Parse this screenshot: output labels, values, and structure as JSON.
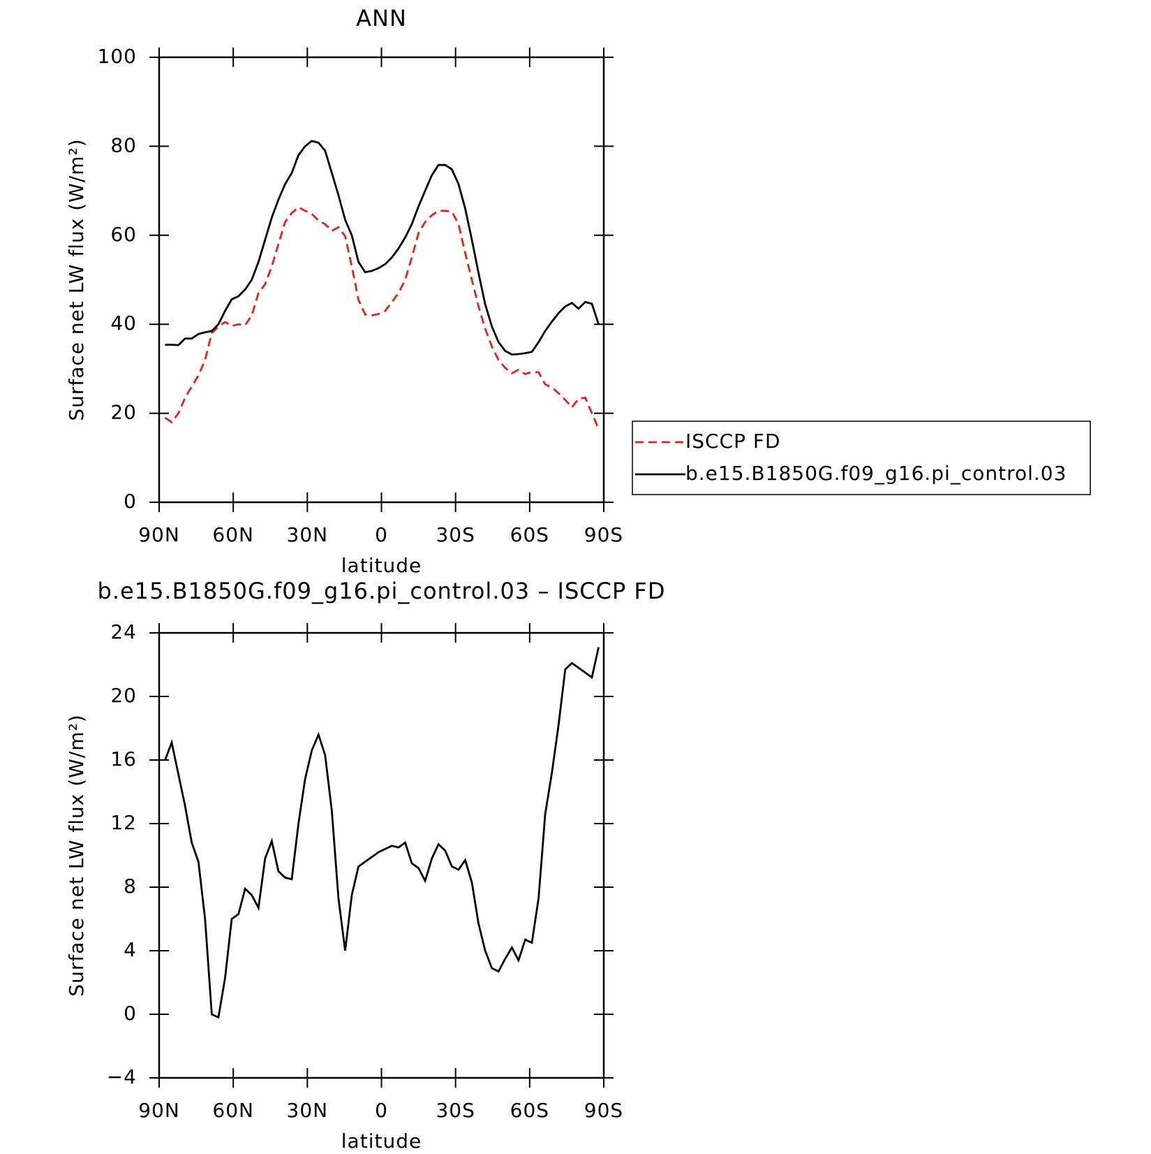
{
  "chart_data": [
    {
      "type": "line",
      "title": "ANN",
      "xlabel": "latitude",
      "ylabel": "Surface net LW flux (W/m²)",
      "x": [
        87.6,
        84.9,
        82.2,
        79.5,
        76.8,
        74.1,
        71.4,
        68.7,
        66,
        63.3,
        60.6,
        57.9,
        55.2,
        52.5,
        49.8,
        47.1,
        44.4,
        41.7,
        39,
        36.3,
        33.6,
        30.9,
        28.2,
        25.5,
        22.8,
        20.1,
        17.4,
        14.7,
        12,
        9.3,
        6.6,
        3.9,
        1.2,
        -1.5,
        -4.2,
        -6.9,
        -9.6,
        -12.3,
        -15,
        -17.7,
        -20.4,
        -23.1,
        -25.8,
        -28.5,
        -31.2,
        -33.9,
        -36.6,
        -39.3,
        -42,
        -44.7,
        -47.4,
        -50.1,
        -52.8,
        -55.5,
        -58.2,
        -60.9,
        -63.6,
        -66.3,
        -69,
        -71.7,
        -74.4,
        -77.1,
        -79.8,
        -82.5,
        -85.2,
        -87.9
      ],
      "series": [
        {
          "name": "ISCCP FD",
          "color": "#e8201f",
          "dash": true,
          "values": [
            19,
            18,
            20,
            23.5,
            26,
            28.5,
            32,
            38,
            39.5,
            40.5,
            39.6,
            40,
            39.8,
            42,
            47,
            49,
            53,
            58,
            63,
            65,
            66.3,
            65.5,
            64.8,
            63.3,
            62.5,
            61,
            61.8,
            59.8,
            53,
            45.5,
            42.2,
            42,
            42.3,
            43,
            45,
            47,
            50,
            55,
            60.5,
            63,
            64.5,
            65.5,
            65.5,
            65.3,
            62.5,
            56,
            50,
            44,
            39,
            35,
            32,
            30.2,
            29,
            29.8,
            28.8,
            29.3,
            29.2,
            26.5,
            25.8,
            24.5,
            23,
            21.3,
            23.3,
            23.5,
            20,
            16.5
          ]
        },
        {
          "name": "b.e15.B1850G.f09_g16.pi_control.03",
          "color": "#000000",
          "dash": false,
          "values": [
            35.4,
            35.4,
            35.3,
            36.8,
            36.8,
            37.8,
            38.2,
            38.5,
            40,
            43,
            45.6,
            46.3,
            47.8,
            50,
            54,
            59,
            64,
            68,
            71.5,
            74,
            78,
            80,
            81.2,
            80.8,
            79,
            74,
            69,
            63.5,
            60,
            54,
            51.7,
            52,
            52.6,
            53.5,
            55,
            57,
            59.5,
            62.5,
            66.5,
            70,
            73.5,
            75.8,
            75.8,
            74.8,
            71.5,
            66,
            59,
            51.5,
            44.5,
            39.5,
            36,
            34,
            33.2,
            33.3,
            33.5,
            33.8,
            36,
            38.5,
            40.6,
            42.5,
            44,
            44.8,
            43.5,
            45,
            44.6,
            40
          ]
        }
      ],
      "xlim": [
        90,
        -90
      ],
      "xticks": [
        {
          "value": 90,
          "label": "90N"
        },
        {
          "value": 60,
          "label": "60N"
        },
        {
          "value": 30,
          "label": "30N"
        },
        0,
        {
          "value": -30,
          "label": "30S"
        },
        {
          "value": -60,
          "label": "60S"
        },
        {
          "value": -90,
          "label": "90S"
        }
      ],
      "ylim": [
        0,
        100
      ],
      "yticks": [
        0,
        20,
        40,
        60,
        80,
        100
      ],
      "legend": "outside-right"
    },
    {
      "type": "line",
      "title": "b.e15.B1850G.f09_g16.pi_control.03 – ISCCP FD",
      "xlabel": "latitude",
      "ylabel": "Surface net LW flux (W/m²)",
      "x": [
        87.6,
        84.9,
        82.2,
        79.5,
        76.8,
        74.1,
        71.4,
        68.7,
        66,
        63.3,
        60.6,
        57.9,
        55.2,
        52.5,
        49.8,
        47.1,
        44.4,
        41.7,
        39,
        36.3,
        33.6,
        30.9,
        28.2,
        25.5,
        22.8,
        20.1,
        17.4,
        14.7,
        12,
        9.3,
        6.6,
        3.9,
        1.2,
        -1.5,
        -4.2,
        -6.9,
        -9.6,
        -12.3,
        -15,
        -17.7,
        -20.4,
        -23.1,
        -25.8,
        -28.5,
        -31.2,
        -33.9,
        -36.6,
        -39.3,
        -42,
        -44.7,
        -47.4,
        -50.1,
        -52.8,
        -55.5,
        -58.2,
        -60.9,
        -63.6,
        -66.3,
        -69,
        -71.7,
        -74.4,
        -77.1,
        -79.8,
        -82.5,
        -85.2,
        -87.9
      ],
      "color": "#000000",
      "values": [
        16,
        17.1,
        15.1,
        13.1,
        10.8,
        9.6,
        6,
        0,
        -0.2,
        2.3,
        6,
        6.3,
        7.9,
        7.5,
        6.7,
        9.8,
        10.9,
        9,
        8.6,
        8.5,
        12,
        14.8,
        16.6,
        17.6,
        16.3,
        12.8,
        7.3,
        4,
        7.5,
        9.3,
        9.6,
        9.9,
        10.2,
        10.4,
        10.6,
        10.5,
        10.8,
        9.5,
        9.2,
        8.4,
        9.8,
        10.7,
        10.3,
        9.3,
        9.1,
        9.7,
        8.3,
        5.7,
        4,
        2.9,
        2.7,
        3.5,
        4.2,
        3.4,
        4.7,
        4.5,
        7.3,
        12.6,
        15.2,
        18.2,
        21.7,
        22.1,
        21.8,
        21.5,
        21.2,
        23.1
      ],
      "xlim": [
        90,
        -90
      ],
      "xticks": [
        {
          "value": 90,
          "label": "90N"
        },
        {
          "value": 60,
          "label": "60N"
        },
        {
          "value": 30,
          "label": "30N"
        },
        0,
        {
          "value": -30,
          "label": "30S"
        },
        {
          "value": -60,
          "label": "60S"
        },
        {
          "value": -90,
          "label": "90S"
        }
      ],
      "ylim": [
        -4,
        24
      ],
      "yticks": [
        {
          "value": -4,
          "label": "−4"
        },
        0,
        4,
        8,
        12,
        16,
        20,
        24
      ]
    }
  ]
}
